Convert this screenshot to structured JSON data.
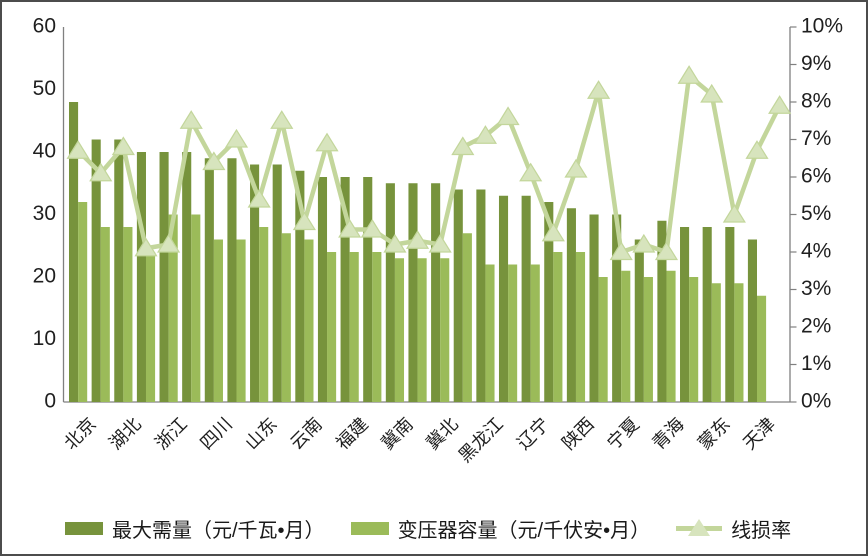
{
  "chart_data": {
    "type": "bar+line-combo",
    "title": "",
    "categories": [
      "北京",
      "",
      "湖北",
      "",
      "浙江",
      "",
      "四川",
      "",
      "山东",
      "",
      "云南",
      "",
      "福建",
      "",
      "冀南",
      "",
      "冀北",
      "",
      "黑龙江",
      "",
      "辽宁",
      "",
      "陕西",
      "",
      "宁夏",
      "",
      "青海",
      "",
      "蒙东",
      "",
      "天津",
      ""
    ],
    "series": [
      {
        "name": "最大需量（元/千瓦•月）",
        "type": "bar",
        "color": "#77933C",
        "axis": "left",
        "values": [
          48,
          42,
          42,
          40,
          40,
          40,
          39,
          39,
          38,
          38,
          37,
          36,
          36,
          36,
          35,
          35,
          35,
          34,
          34,
          33,
          33,
          32,
          31,
          30,
          30,
          26,
          29,
          28,
          28,
          28,
          26,
          null
        ]
      },
      {
        "name": "变压器容量（元/千伏安•月）",
        "type": "bar",
        "color": "#9BBB59",
        "axis": "left",
        "values": [
          32,
          28,
          28,
          24,
          30,
          30,
          26,
          26,
          28,
          27,
          26,
          24,
          24,
          24,
          23,
          23,
          23,
          27,
          22,
          22,
          22,
          24,
          24,
          20,
          21,
          20,
          21,
          20,
          19,
          19,
          17,
          null
        ]
      },
      {
        "name": "线损率",
        "type": "line",
        "color": "#C3D69B",
        "marker_fill": "#D7E4BD",
        "axis": "right",
        "values": [
          6.7,
          6.1,
          6.8,
          4.1,
          4.2,
          7.5,
          6.4,
          7.0,
          5.4,
          7.5,
          4.8,
          6.9,
          4.6,
          4.6,
          4.2,
          4.3,
          4.2,
          6.8,
          7.1,
          7.6,
          6.1,
          4.5,
          6.2,
          8.3,
          4.0,
          4.2,
          4.0,
          8.7,
          8.2,
          5.0,
          6.7,
          7.9
        ]
      }
    ],
    "left_axis": {
      "min": 0,
      "max": 60,
      "step": 10,
      "ticks": [
        "0",
        "10",
        "20",
        "30",
        "40",
        "50",
        "60"
      ]
    },
    "right_axis": {
      "min": 0,
      "max": 10,
      "step": 1,
      "ticks": [
        "0%",
        "1%",
        "2%",
        "3%",
        "4%",
        "5%",
        "6%",
        "7%",
        "8%",
        "9%",
        "10%"
      ]
    },
    "legend_position": "bottom",
    "grid": false,
    "axis_color": "#808080",
    "text_color": "#1f1f1f"
  }
}
